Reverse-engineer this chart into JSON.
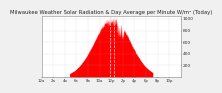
{
  "title": "Milwaukee Weather Solar Radiation & Day Average per Minute W/m² (Today)",
  "title_fontsize": 3.8,
  "bg_color": "#f0f0f0",
  "plot_bg_color": "#ffffff",
  "bar_color": "#ff0000",
  "grid_color": "#aaaaaa",
  "peak_value": 1000,
  "ylim": [
    0,
    1050
  ],
  "yticks": [
    200,
    400,
    600,
    800,
    1000
  ],
  "ytick_fontsize": 3.2,
  "xtick_fontsize": 2.8,
  "num_points": 1440,
  "peak_minute": 730,
  "sigma": 185,
  "sunrise": 290,
  "sunset": 1150,
  "vline1_minute": 710,
  "vline2_minute": 750,
  "vline_color": "#dddddd",
  "vline_style": "--"
}
